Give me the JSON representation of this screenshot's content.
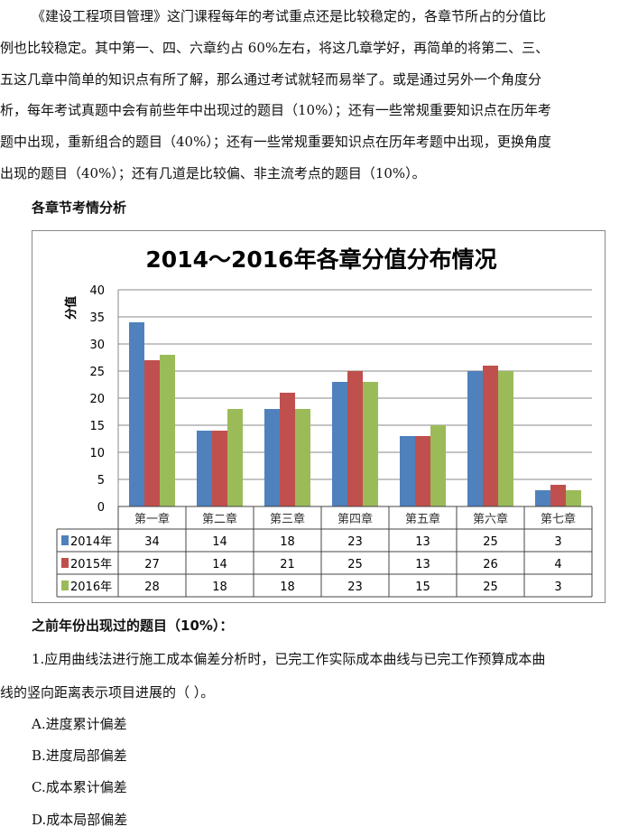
{
  "intro": {
    "lines": [
      "《建设工程项目管理》这门课程每年的考试重点还是比较稳定的，各章节所占的分值比",
      "例也比较稳定。其中第一、四、六章约占 60%左右，将这几章学好，再简单的将第二、三、",
      "五这几章中简单的知识点有所了解，那么通过考试就轻而易举了。或是通过另外一个角度分",
      "析，每年考试真题中会有前些年中出现过的题目（10%）；还有一些常规重要知识点在历年考",
      "题中出现，重新组合的题目（40%）；还有一些常规重要知识点在历年考题中出现，更换角度",
      "出现的题目（40%）；还有几道是比较偏、非主流考点的题目（10%）。"
    ]
  },
  "section_heading": "各章节考情分析",
  "chart_data": {
    "type": "bar",
    "title": "2014～2016年各章分值分布情况",
    "ylabel": "分值",
    "xlabel": "",
    "ylim": [
      0,
      40
    ],
    "yticks": [
      0,
      5,
      10,
      15,
      20,
      25,
      30,
      35,
      40
    ],
    "grid": true,
    "legend": "data-table",
    "categories": [
      "第一章",
      "第二章",
      "第三章",
      "第四章",
      "第五章",
      "第六章",
      "第七章"
    ],
    "series": [
      {
        "name": "2014年",
        "color": "#4f81bd",
        "values": [
          34,
          14,
          18,
          23,
          13,
          25,
          3
        ]
      },
      {
        "name": "2015年",
        "color": "#c0504d",
        "values": [
          27,
          14,
          21,
          25,
          13,
          26,
          4
        ]
      },
      {
        "name": "2016年",
        "color": "#9bbb59",
        "values": [
          28,
          18,
          18,
          23,
          15,
          25,
          3
        ]
      }
    ]
  },
  "question_section": {
    "heading": "之前年份出现过的题目（10%）：",
    "question_lines": [
      "1.应用曲线法进行施工成本偏差分析时，已完工作实际成本曲线与已完工作预算成本曲",
      "线的竖向距离表示项目进展的（    ）。"
    ],
    "options": [
      "A.进度累计偏差",
      "B.进度局部偏差",
      "C.成本累计偏差",
      "D.成本局部偏差"
    ]
  }
}
